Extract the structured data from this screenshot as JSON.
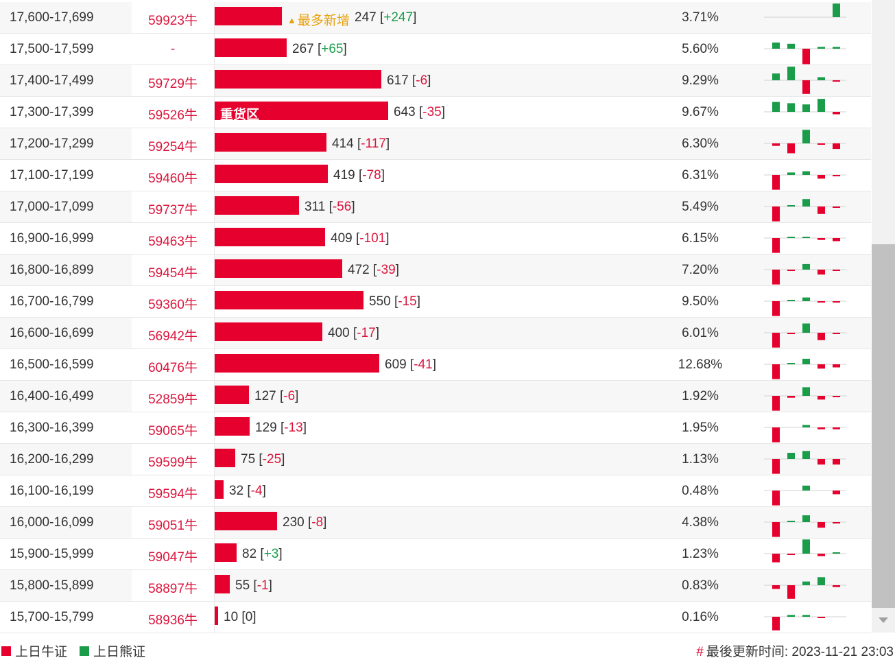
{
  "colors": {
    "bull": "#e6002d",
    "bear": "#1a9c4a",
    "tag": "#e8a00a",
    "neg_text": "#dc143c"
  },
  "rows": [
    {
      "range": "17,600-17,699",
      "price": "59923牛",
      "count": "247",
      "change": "+247",
      "pct": "3.71%",
      "share": 0.155,
      "tag": "最多新增",
      "bar_label": "",
      "spark": [
        0,
        0,
        0,
        0,
        2.2
      ]
    },
    {
      "range": "17,500-17,599",
      "price": "-",
      "count": "267",
      "change": "+65",
      "pct": "5.60%",
      "share": 0.166,
      "tag": "",
      "bar_label": "",
      "spark": [
        1,
        0.8,
        -2.5,
        0.3,
        0.3
      ]
    },
    {
      "range": "17,400-17,499",
      "price": "59729牛",
      "count": "617",
      "change": "-6",
      "pct": "9.29%",
      "share": 0.383,
      "tag": "",
      "bar_label": "",
      "spark": [
        1.1,
        2.2,
        -2.2,
        0.5,
        -0.2
      ]
    },
    {
      "range": "17,300-17,399",
      "price": "59526牛",
      "count": "643",
      "change": "-35",
      "pct": "9.67%",
      "share": 0.399,
      "tag": "",
      "bar_label": "重货区",
      "spark": [
        1.6,
        1.4,
        1.2,
        2.1,
        -0.4
      ]
    },
    {
      "range": "17,200-17,299",
      "price": "59254牛",
      "count": "414",
      "change": "-117",
      "pct": "6.30%",
      "share": 0.257,
      "tag": "",
      "bar_label": "",
      "spark": [
        -0.4,
        -1.6,
        2.2,
        -0.2,
        -0.9
      ]
    },
    {
      "range": "17,100-17,199",
      "price": "59460牛",
      "count": "419",
      "change": "-78",
      "pct": "6.31%",
      "share": 0.26,
      "tag": "",
      "bar_label": "",
      "spark": [
        -2.4,
        0.4,
        0.6,
        -0.6,
        -0.2
      ]
    },
    {
      "range": "17,000-17,099",
      "price": "59737牛",
      "count": "311",
      "change": "-56",
      "pct": "5.49%",
      "share": 0.193,
      "tag": "",
      "bar_label": "",
      "spark": [
        -2.4,
        0.2,
        1.2,
        -1.2,
        -0.2
      ]
    },
    {
      "range": "16,900-16,999",
      "price": "59463牛",
      "count": "409",
      "change": "-101",
      "pct": "6.15%",
      "share": 0.254,
      "tag": "",
      "bar_label": "",
      "spark": [
        -2.4,
        0.2,
        0.2,
        -0.3,
        -0.5
      ]
    },
    {
      "range": "16,800-16,899",
      "price": "59454牛",
      "count": "472",
      "change": "-39",
      "pct": "7.20%",
      "share": 0.293,
      "tag": "",
      "bar_label": "",
      "spark": [
        -2.4,
        -0.2,
        0.9,
        -0.8,
        -0.2
      ]
    },
    {
      "range": "16,700-16,799",
      "price": "59360牛",
      "count": "550",
      "change": "-15",
      "pct": "9.50%",
      "share": 0.341,
      "tag": "",
      "bar_label": "",
      "spark": [
        -2.4,
        0.2,
        0.6,
        -0.2,
        -0.2
      ]
    },
    {
      "range": "16,600-16,699",
      "price": "56942牛",
      "count": "400",
      "change": "-17",
      "pct": "6.01%",
      "share": 0.248,
      "tag": "",
      "bar_label": "",
      "spark": [
        -2.4,
        -0.2,
        1.5,
        -1.2,
        -0.2
      ]
    },
    {
      "range": "16,500-16,599",
      "price": "60476牛",
      "count": "609",
      "change": "-41",
      "pct": "12.68%",
      "share": 0.378,
      "tag": "",
      "bar_label": "",
      "spark": [
        -2.4,
        0.2,
        0.9,
        -0.7,
        -0.5
      ]
    },
    {
      "range": "16,400-16,499",
      "price": "52859牛",
      "count": "127",
      "change": "-6",
      "pct": "1.92%",
      "share": 0.079,
      "tag": "",
      "bar_label": "",
      "spark": [
        -2.4,
        -0.3,
        1.4,
        -0.6,
        -0.2
      ]
    },
    {
      "range": "16,300-16,399",
      "price": "59065牛",
      "count": "129",
      "change": "-13",
      "pct": "1.95%",
      "share": 0.08,
      "tag": "",
      "bar_label": "",
      "spark": [
        -2.4,
        0,
        0.4,
        -0.3,
        -0.3
      ]
    },
    {
      "range": "16,200-16,299",
      "price": "59599牛",
      "count": "75",
      "change": "-25",
      "pct": "1.13%",
      "share": 0.047,
      "tag": "",
      "bar_label": "",
      "spark": [
        -2.4,
        1,
        1.3,
        -0.9,
        -0.9
      ]
    },
    {
      "range": "16,100-16,199",
      "price": "59594牛",
      "count": "32",
      "change": "-4",
      "pct": "0.48%",
      "share": 0.02,
      "tag": "",
      "bar_label": "",
      "spark": [
        -2.4,
        0,
        0.8,
        0,
        -0.6
      ]
    },
    {
      "range": "16,000-16,099",
      "price": "59051牛",
      "count": "230",
      "change": "-8",
      "pct": "4.38%",
      "share": 0.143,
      "tag": "",
      "bar_label": "",
      "spark": [
        -2.4,
        0.1,
        1.1,
        -0.9,
        -0.2
      ]
    },
    {
      "range": "15,900-15,999",
      "price": "59047牛",
      "count": "82",
      "change": "+3",
      "pct": "1.23%",
      "share": 0.051,
      "tag": "",
      "bar_label": "",
      "spark": [
        -1.4,
        -0.2,
        2.3,
        -0.4,
        0.1
      ]
    },
    {
      "range": "15,800-15,899",
      "price": "58897牛",
      "count": "55",
      "change": "-1",
      "pct": "0.83%",
      "share": 0.034,
      "tag": "",
      "bar_label": "",
      "spark": [
        -0.6,
        -2.2,
        0.6,
        1.3,
        -0.3
      ]
    },
    {
      "range": "15,700-15,799",
      "price": "58936牛",
      "count": "10",
      "change": "0",
      "pct": "0.16%",
      "share": 0.006,
      "tag": "",
      "bar_label": "",
      "spark": [
        -2.2,
        0.3,
        0.3,
        -0.2,
        0
      ]
    }
  ],
  "legend": {
    "bull": "上日牛证",
    "bear": "上日熊证"
  },
  "footer": {
    "hash": "#",
    "update_text": "最後更新时间: 2023-11-21 23:03"
  }
}
